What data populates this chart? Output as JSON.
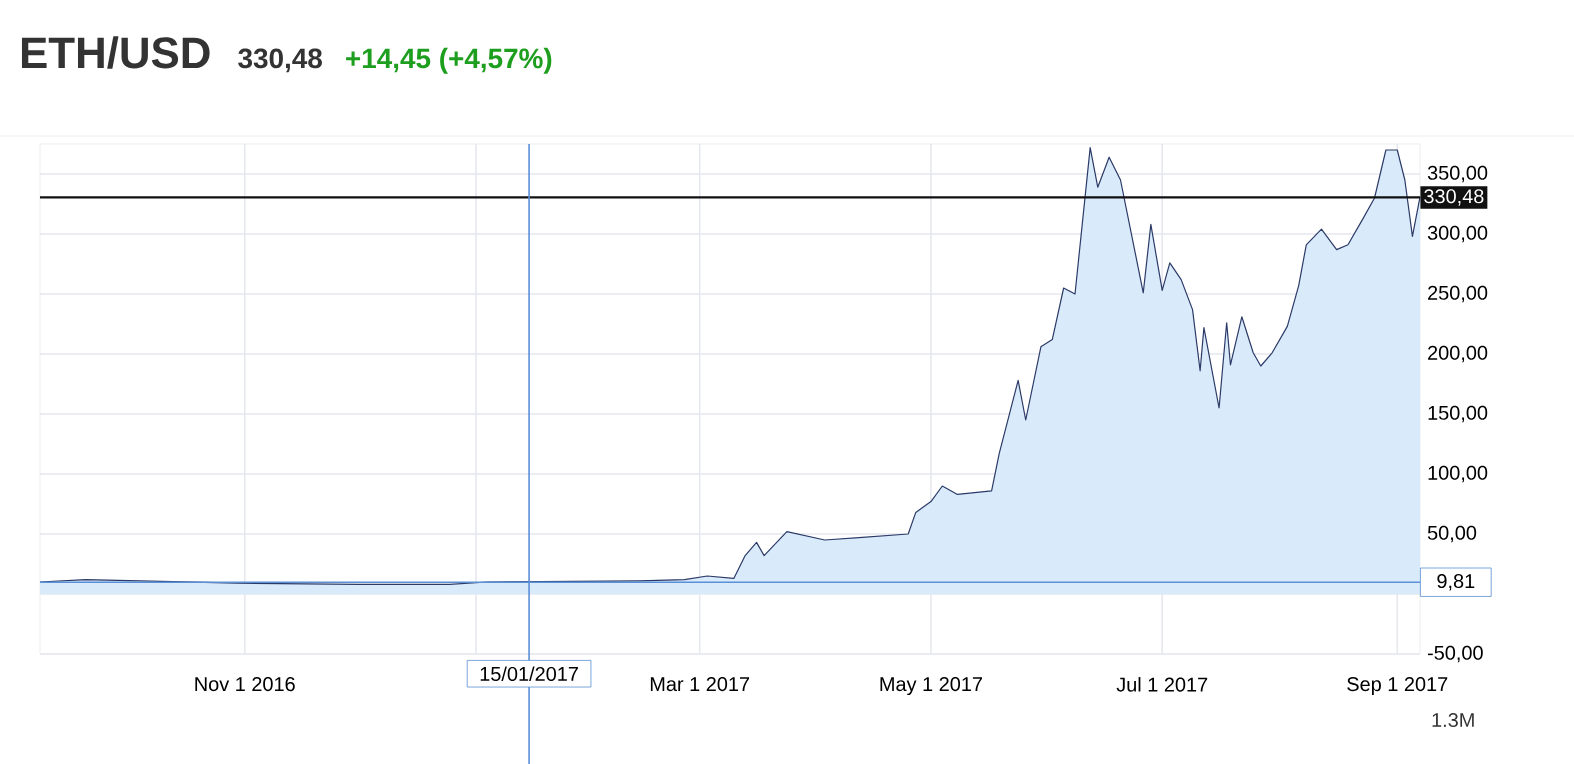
{
  "chart_data": {
    "type": "area",
    "title": "ETH/USD",
    "subtitle": "330,48",
    "annotations": [
      "+14,45 (+4,57%)",
      "1.3M"
    ],
    "x": [
      "2016-09-08",
      "2016-09-20",
      "2016-10-30",
      "2016-12-01",
      "2016-12-25",
      "2017-01-04",
      "2017-02-13",
      "2017-02-25",
      "2017-03-03",
      "2017-03-10",
      "2017-03-13",
      "2017-03-16",
      "2017-03-18",
      "2017-03-24",
      "2017-04-03",
      "2017-04-12",
      "2017-04-25",
      "2017-04-27",
      "2017-05-01",
      "2017-05-04",
      "2017-05-08",
      "2017-05-17",
      "2017-05-19",
      "2017-05-24",
      "2017-05-26",
      "2017-05-30",
      "2017-06-02",
      "2017-06-05",
      "2017-06-08",
      "2017-06-12",
      "2017-06-14",
      "2017-06-17",
      "2017-06-20",
      "2017-06-23",
      "2017-06-26",
      "2017-06-28",
      "2017-07-01",
      "2017-07-03",
      "2017-07-06",
      "2017-07-09",
      "2017-07-11",
      "2017-07-12",
      "2017-07-16",
      "2017-07-18",
      "2017-07-19",
      "2017-07-22",
      "2017-07-25",
      "2017-07-27",
      "2017-07-30",
      "2017-08-03",
      "2017-08-06",
      "2017-08-08",
      "2017-08-12",
      "2017-08-16",
      "2017-08-19",
      "2017-08-23",
      "2017-08-26",
      "2017-08-29",
      "2017-09-01",
      "2017-09-03",
      "2017-09-05",
      "2017-09-07"
    ],
    "series": [
      {
        "color": "#2b3a67",
        "values": [
          10,
          12,
          9,
          8,
          8,
          10,
          11,
          12,
          15,
          13,
          32,
          43,
          32,
          52,
          45,
          47,
          50,
          68,
          77,
          90,
          83,
          86,
          117,
          178,
          145,
          206,
          212,
          255,
          250,
          372,
          339,
          364,
          345,
          298,
          251,
          308,
          253,
          276,
          262,
          237,
          186,
          222,
          155,
          226,
          191,
          231,
          201,
          190,
          201,
          223,
          257,
          291,
          304,
          287,
          291,
          313,
          330,
          370,
          370,
          345,
          298,
          331
        ]
      }
    ],
    "xlim": [
      "2016-09-08",
      "2017-09-07"
    ],
    "xticks": [
      {
        "value": "2016-11-01",
        "label": "Nov 1 2016"
      },
      {
        "value": "2017-01-01",
        "label": null
      },
      {
        "value": "2017-03-01",
        "label": "Mar 1 2017"
      },
      {
        "value": "2017-05-01",
        "label": "May 1 2017"
      },
      {
        "value": "2017-07-01",
        "label": "Jul 1 2017"
      },
      {
        "value": "2017-09-01",
        "label": "Sep 1 2017"
      }
    ],
    "ylim": [
      -50,
      375
    ],
    "yticks": [
      {
        "value": -50,
        "label": "-50,00"
      },
      {
        "value": 0,
        "label": null
      },
      {
        "value": 50,
        "label": "50,00"
      },
      {
        "value": 100,
        "label": "100,00"
      },
      {
        "value": 150,
        "label": "150,00"
      },
      {
        "value": 200,
        "label": "200,00"
      },
      {
        "value": 250,
        "label": "250,00"
      },
      {
        "value": 300,
        "label": "300,00"
      },
      {
        "value": 350,
        "label": "350,00"
      }
    ],
    "grid": true,
    "ref_lines": [
      {
        "axis": "y",
        "value": 330.48,
        "label": "330,48",
        "color": "#111111"
      },
      {
        "axis": "y",
        "value": 9.81,
        "label": "9,81",
        "color": "#5b8fd6"
      },
      {
        "axis": "x",
        "value": "2017-01-15",
        "label": "15/01/2017",
        "color": "#5b8fd6"
      }
    ]
  }
}
